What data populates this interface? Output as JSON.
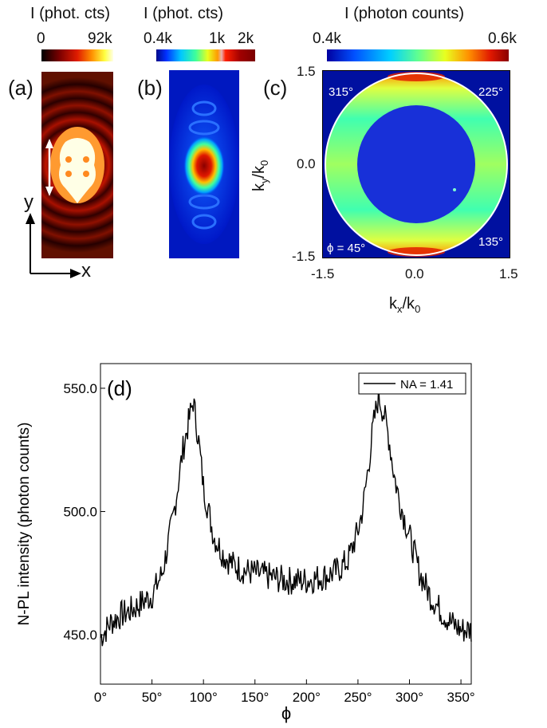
{
  "panel_a": {
    "letter": "(a)",
    "colorbar": {
      "title": "I (phot. cts)",
      "min": "0",
      "max": "92k",
      "colors": [
        "#000000",
        "#7a0000",
        "#e01c00",
        "#ff9000",
        "#ffff40",
        "#ffffe8"
      ]
    },
    "axis_y": "y",
    "axis_x": "x"
  },
  "panel_b": {
    "letter": "(b)",
    "colorbar": {
      "title": "I (phot. cts)",
      "ticks": [
        "0.4k",
        "1k",
        "2k"
      ]
    }
  },
  "panel_c": {
    "letter": "(c)",
    "colorbar": {
      "title": "I (photon counts)",
      "min": "0.4k",
      "max": "0.6k"
    },
    "angles": [
      "315°",
      "225°",
      "135°",
      "ϕ = 45°"
    ],
    "xticks": [
      "-1.5",
      "0.0",
      "1.5"
    ],
    "yticks": [
      "1.5",
      "0.0",
      "-1.5"
    ],
    "xlabel_main": "k",
    "xlabel_sub": "x",
    "xlabel_mid": "/k",
    "xlabel_sub2": "0",
    "ylabel_main": "k",
    "ylabel_sub": "y",
    "ylabel_mid": "/k",
    "ylabel_sub2": "0"
  },
  "chart_data": {
    "type": "line",
    "panel_letter": "(d)",
    "title": "",
    "xlabel": "ϕ",
    "ylabel": "N-PL intensity (photon counts)",
    "xlim": [
      0,
      360
    ],
    "ylim": [
      430,
      560
    ],
    "xticks": [
      "0°",
      "50°",
      "100°",
      "150°",
      "200°",
      "250°",
      "300°",
      "350°"
    ],
    "xtick_values": [
      0,
      50,
      100,
      150,
      200,
      250,
      300,
      350
    ],
    "yticks": [
      "450.0",
      "500.0",
      "550.0"
    ],
    "ytick_values": [
      450,
      500,
      550
    ],
    "legend_position": "top-right",
    "series": [
      {
        "name": "NA = 1.41",
        "color": "#000000",
        "x": [
          0,
          10,
          20,
          30,
          40,
          50,
          60,
          70,
          75,
          80,
          85,
          90,
          95,
          100,
          105,
          110,
          120,
          130,
          140,
          150,
          160,
          170,
          180,
          190,
          200,
          210,
          220,
          230,
          240,
          250,
          255,
          260,
          265,
          270,
          275,
          280,
          285,
          290,
          300,
          310,
          320,
          330,
          340,
          350,
          360
        ],
        "y": [
          449,
          455,
          458,
          460,
          463,
          466,
          475,
          496,
          510,
          525,
          535,
          545,
          530,
          510,
          500,
          490,
          482,
          478,
          476,
          475,
          474,
          473,
          472,
          472,
          472,
          473,
          474,
          476,
          480,
          492,
          502,
          518,
          535,
          547,
          540,
          530,
          515,
          505,
          490,
          475,
          466,
          460,
          455,
          452,
          452
        ]
      }
    ]
  }
}
